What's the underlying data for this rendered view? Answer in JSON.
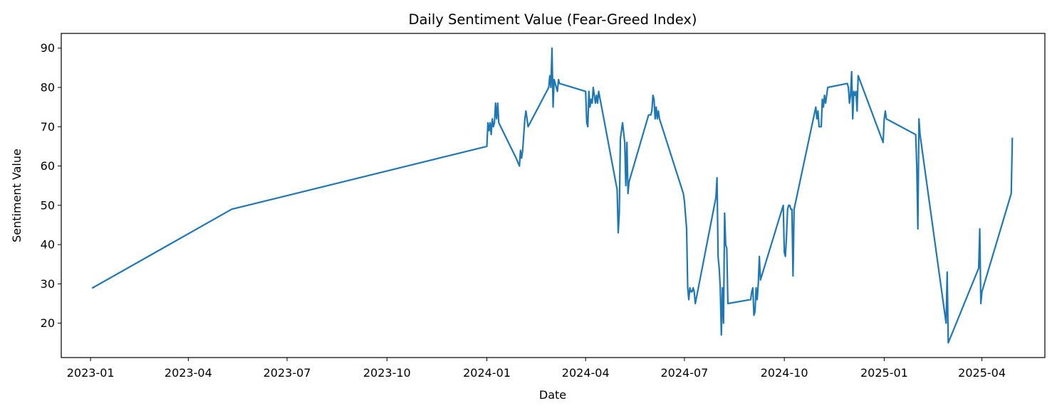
{
  "chart_data": {
    "type": "line",
    "title": "Daily Sentiment Value (Fear-Greed Index)",
    "xlabel": "Date",
    "ylabel": "Sentiment Value",
    "x_axis_type": "date",
    "xlim": [
      "2022-12-05",
      "2025-05-29"
    ],
    "ylim": [
      11.25,
      93.75
    ],
    "x_ticks": [
      "2023-01",
      "2023-04",
      "2023-07",
      "2023-10",
      "2024-01",
      "2024-04",
      "2024-07",
      "2024-10",
      "2025-01",
      "2025-04"
    ],
    "y_ticks": [
      20,
      30,
      40,
      50,
      60,
      70,
      80,
      90
    ],
    "grid": false,
    "legend": "none",
    "series": [
      {
        "color": "#1f77b4",
        "points": [
          [
            "2023-01-03",
            29
          ],
          [
            "2023-05-11",
            49
          ],
          [
            "2024-01-01",
            65
          ],
          [
            "2024-01-02",
            71
          ],
          [
            "2024-01-03",
            69
          ],
          [
            "2024-01-04",
            71
          ],
          [
            "2024-01-05",
            68
          ],
          [
            "2024-01-06",
            72
          ],
          [
            "2024-01-07",
            70
          ],
          [
            "2024-01-08",
            71
          ],
          [
            "2024-01-09",
            76
          ],
          [
            "2024-01-10",
            72
          ],
          [
            "2024-01-11",
            76
          ],
          [
            "2024-01-12",
            71
          ],
          [
            "2024-01-28",
            62
          ],
          [
            "2024-01-31",
            60
          ],
          [
            "2024-02-01",
            64
          ],
          [
            "2024-02-02",
            62
          ],
          [
            "2024-02-03",
            64
          ],
          [
            "2024-02-05",
            72
          ],
          [
            "2024-02-06",
            74
          ],
          [
            "2024-02-08",
            70
          ],
          [
            "2024-02-27",
            80
          ],
          [
            "2024-02-28",
            83
          ],
          [
            "2024-02-29",
            80
          ],
          [
            "2024-03-01",
            90
          ],
          [
            "2024-03-02",
            75
          ],
          [
            "2024-03-03",
            82
          ],
          [
            "2024-03-06",
            79
          ],
          [
            "2024-03-07",
            82
          ],
          [
            "2024-03-08",
            81
          ],
          [
            "2024-04-01",
            79
          ],
          [
            "2024-04-02",
            71
          ],
          [
            "2024-04-03",
            70
          ],
          [
            "2024-04-04",
            79
          ],
          [
            "2024-04-05",
            75
          ],
          [
            "2024-04-06",
            77
          ],
          [
            "2024-04-07",
            76
          ],
          [
            "2024-04-08",
            80
          ],
          [
            "2024-04-10",
            76
          ],
          [
            "2024-04-11",
            78
          ],
          [
            "2024-04-12",
            76
          ],
          [
            "2024-04-13",
            79
          ],
          [
            "2024-04-30",
            54
          ],
          [
            "2024-05-01",
            43
          ],
          [
            "2024-05-02",
            48
          ],
          [
            "2024-05-03",
            67
          ],
          [
            "2024-05-05",
            71
          ],
          [
            "2024-05-07",
            66
          ],
          [
            "2024-05-08",
            55
          ],
          [
            "2024-05-09",
            66
          ],
          [
            "2024-05-10",
            53
          ],
          [
            "2024-05-11",
            56
          ],
          [
            "2024-05-29",
            73
          ],
          [
            "2024-05-31",
            73
          ],
          [
            "2024-06-01",
            74
          ],
          [
            "2024-06-02",
            78
          ],
          [
            "2024-06-03",
            77
          ],
          [
            "2024-06-04",
            72
          ],
          [
            "2024-06-05",
            75
          ],
          [
            "2024-06-06",
            72
          ],
          [
            "2024-06-07",
            74
          ],
          [
            "2024-06-08",
            72
          ],
          [
            "2024-06-30",
            53
          ],
          [
            "2024-07-01",
            51
          ],
          [
            "2024-07-03",
            44
          ],
          [
            "2024-07-04",
            29
          ],
          [
            "2024-07-05",
            26
          ],
          [
            "2024-07-06",
            29
          ],
          [
            "2024-07-07",
            28
          ],
          [
            "2024-07-08",
            28
          ],
          [
            "2024-07-09",
            29
          ],
          [
            "2024-07-10",
            28
          ],
          [
            "2024-07-11",
            25
          ],
          [
            "2024-07-30",
            52
          ],
          [
            "2024-07-31",
            57
          ],
          [
            "2024-08-01",
            37
          ],
          [
            "2024-08-02",
            34
          ],
          [
            "2024-08-03",
            29
          ],
          [
            "2024-08-04",
            17
          ],
          [
            "2024-08-05",
            29
          ],
          [
            "2024-08-06",
            20
          ],
          [
            "2024-08-07",
            48
          ],
          [
            "2024-08-08",
            40
          ],
          [
            "2024-08-09",
            39
          ],
          [
            "2024-08-10",
            25
          ],
          [
            "2024-08-31",
            26
          ],
          [
            "2024-09-01",
            28
          ],
          [
            "2024-09-02",
            29
          ],
          [
            "2024-09-03",
            22
          ],
          [
            "2024-09-04",
            23
          ],
          [
            "2024-09-05",
            29
          ],
          [
            "2024-09-06",
            26
          ],
          [
            "2024-09-07",
            30
          ],
          [
            "2024-09-08",
            37
          ],
          [
            "2024-09-09",
            31
          ],
          [
            "2024-09-30",
            50
          ],
          [
            "2024-10-01",
            38
          ],
          [
            "2024-10-02",
            37
          ],
          [
            "2024-10-03",
            42
          ],
          [
            "2024-10-04",
            49
          ],
          [
            "2024-10-05",
            50
          ],
          [
            "2024-10-06",
            50
          ],
          [
            "2024-10-07",
            49
          ],
          [
            "2024-10-08",
            49
          ],
          [
            "2024-10-09",
            32
          ],
          [
            "2024-10-10",
            49
          ],
          [
            "2024-10-30",
            75
          ],
          [
            "2024-10-31",
            72
          ],
          [
            "2024-11-01",
            74
          ],
          [
            "2024-11-02",
            70
          ],
          [
            "2024-11-03",
            70
          ],
          [
            "2024-11-04",
            70
          ],
          [
            "2024-11-05",
            77
          ],
          [
            "2024-11-06",
            75
          ],
          [
            "2024-11-07",
            78
          ],
          [
            "2024-11-08",
            76
          ],
          [
            "2024-11-09",
            78
          ],
          [
            "2024-11-10",
            80
          ],
          [
            "2024-11-28",
            81
          ],
          [
            "2024-11-29",
            80
          ],
          [
            "2024-11-30",
            76
          ],
          [
            "2024-12-01",
            78
          ],
          [
            "2024-12-02",
            84
          ],
          [
            "2024-12-03",
            72
          ],
          [
            "2024-12-04",
            79
          ],
          [
            "2024-12-05",
            78
          ],
          [
            "2024-12-06",
            79
          ],
          [
            "2024-12-07",
            74
          ],
          [
            "2024-12-08",
            83
          ],
          [
            "2024-12-31",
            66
          ],
          [
            "2025-01-01",
            72
          ],
          [
            "2025-01-02",
            74
          ],
          [
            "2025-01-03",
            72
          ],
          [
            "2025-01-30",
            68
          ],
          [
            "2025-01-31",
            60
          ],
          [
            "2025-02-01",
            44
          ],
          [
            "2025-02-02",
            72
          ],
          [
            "2025-02-03",
            68
          ],
          [
            "2025-02-27",
            20
          ],
          [
            "2025-02-28",
            33
          ],
          [
            "2025-03-01",
            15
          ],
          [
            "2025-03-29",
            34
          ],
          [
            "2025-03-30",
            44
          ],
          [
            "2025-03-31",
            25
          ],
          [
            "2025-04-01",
            28
          ],
          [
            "2025-04-28",
            53
          ],
          [
            "2025-04-29",
            67
          ]
        ]
      }
    ]
  }
}
